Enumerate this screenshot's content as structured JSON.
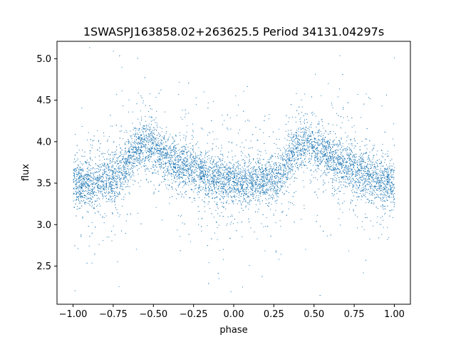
{
  "chart_data": {
    "type": "scatter",
    "title": "1SWASPJ163858.02+263625.5 Period 34131.04297s",
    "xlabel": "phase",
    "ylabel": "flux",
    "xlim": [
      -1.1,
      1.1
    ],
    "ylim": [
      2.04,
      5.21
    ],
    "xticks": [
      -1.0,
      -0.75,
      -0.5,
      -0.25,
      0.0,
      0.25,
      0.5,
      0.75,
      1.0
    ],
    "xtick_labels": [
      "−1.00",
      "−0.75",
      "−0.50",
      "−0.25",
      "0.00",
      "0.25",
      "0.50",
      "0.75",
      "1.00"
    ],
    "yticks": [
      2.5,
      3.0,
      3.5,
      4.0,
      4.5,
      5.0
    ],
    "ytick_labels": [
      "2.5",
      "3.0",
      "3.5",
      "4.0",
      "4.5",
      "5.0"
    ],
    "grid": false,
    "legend": "none",
    "marker_color": "#1f77b4",
    "series": [
      {
        "x_range": [
          -1.0,
          1.0
        ],
        "profile_phase": [
          0.0,
          0.1,
          0.2,
          0.3,
          0.35,
          0.4,
          0.45,
          0.5,
          0.55,
          0.6,
          0.7,
          0.8,
          0.9,
          1.0
        ],
        "profile_flux": [
          3.5,
          3.51,
          3.53,
          3.62,
          3.82,
          3.95,
          3.98,
          3.92,
          3.85,
          3.78,
          3.7,
          3.62,
          3.55,
          3.5
        ]
      }
    ]
  }
}
